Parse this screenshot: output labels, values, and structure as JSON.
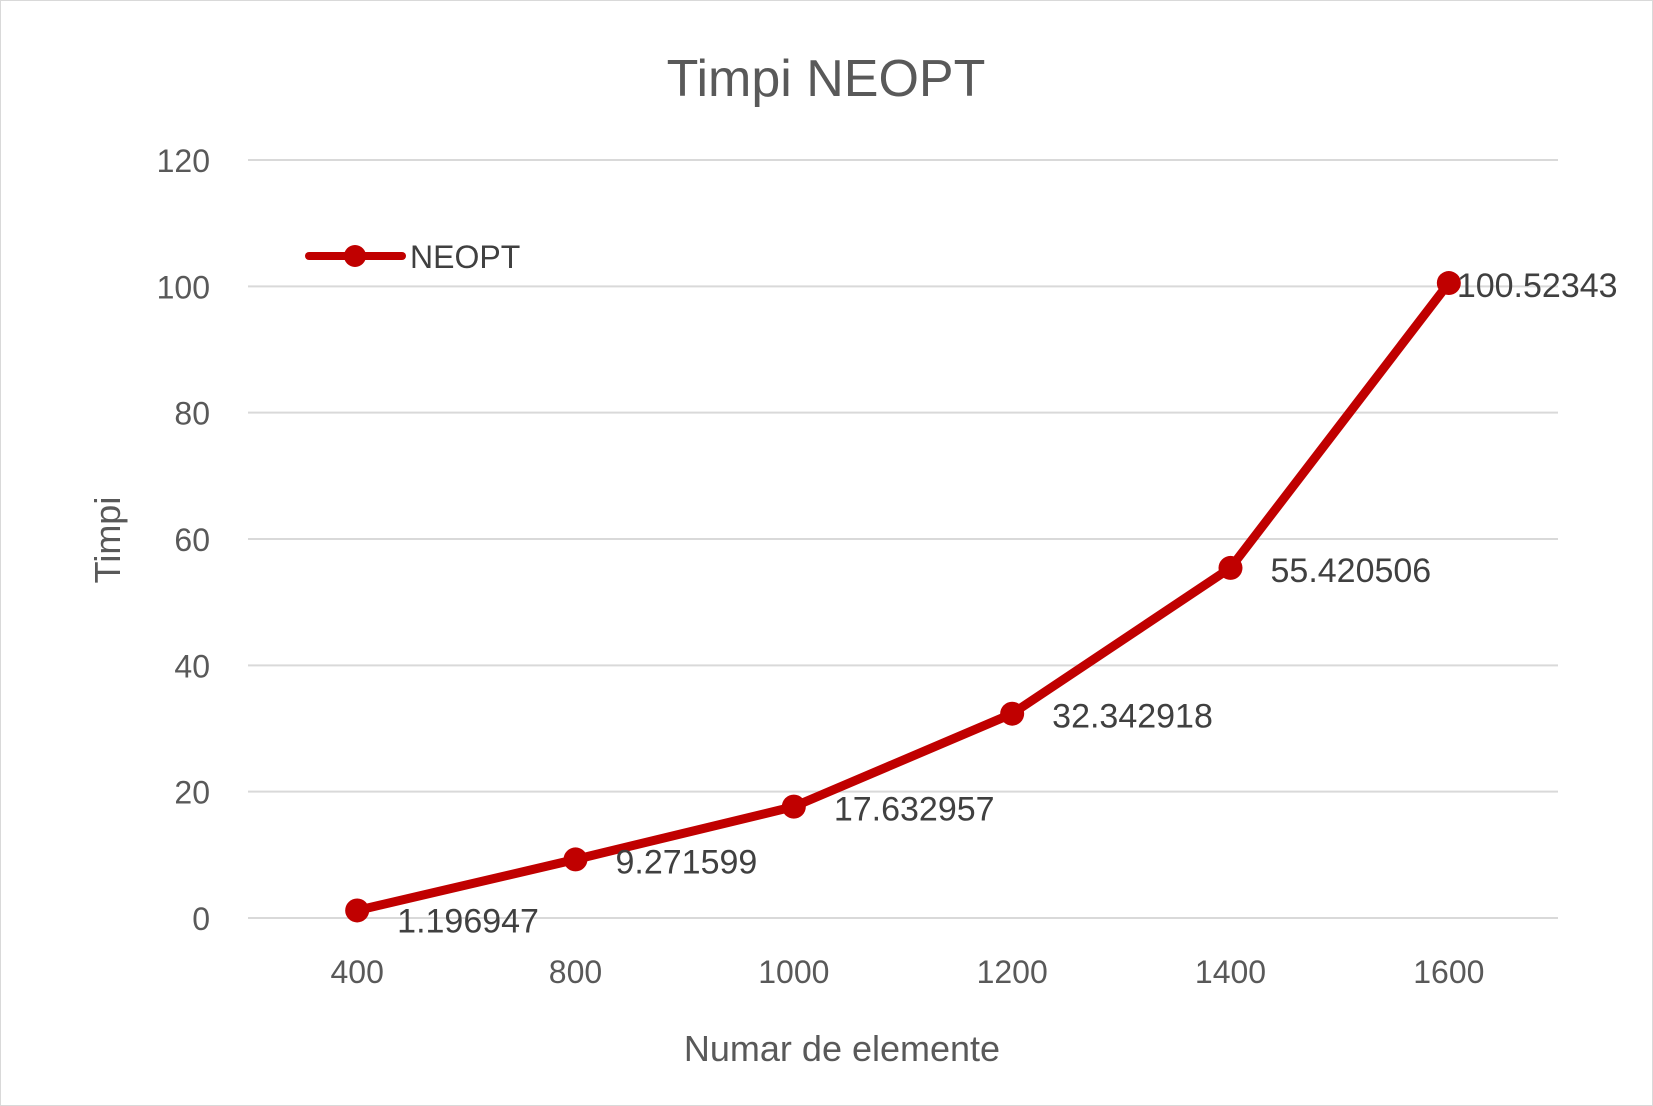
{
  "chart_data": {
    "type": "line",
    "title": "Timpi NEOPT",
    "xlabel": "Numar de elemente",
    "ylabel": "Timpi",
    "categories": [
      "400",
      "800",
      "1000",
      "1200",
      "1400",
      "1600"
    ],
    "series": [
      {
        "name": "NEOPT",
        "values": [
          1.196947,
          9.271599,
          17.632957,
          32.342918,
          55.420506,
          100.52343
        ],
        "labels": [
          "1.196947",
          "9.271599",
          "17.632957",
          "32.342918",
          "55.420506",
          "100.52343"
        ],
        "color": "#c00000"
      }
    ],
    "ylim": [
      0,
      120
    ],
    "yticks": [
      "0",
      "20",
      "40",
      "60",
      "80",
      "100",
      "120"
    ],
    "grid": true,
    "legend_position": "top-left"
  }
}
